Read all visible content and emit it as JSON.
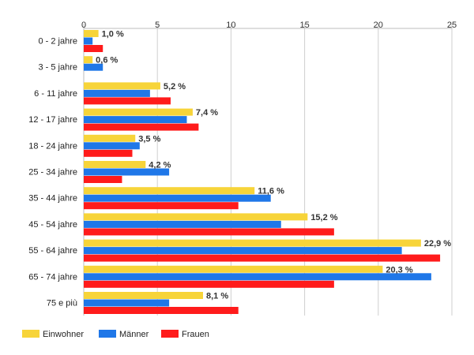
{
  "chart_data": {
    "type": "bar",
    "orientation": "horizontal",
    "categories": [
      "0 - 2 jahre",
      "3 - 5 jahre",
      "6 - 11 jahre",
      "12 - 17 jahre",
      "18 - 24 jahre",
      "25 - 34 jahre",
      "35 - 44 jahre",
      "45 - 54 jahre",
      "55 - 64 jahre",
      "65 - 74 jahre",
      "75 e più"
    ],
    "series": [
      {
        "name": "Einwohner",
        "color": "#f7d439",
        "values": [
          1.0,
          0.6,
          5.2,
          7.4,
          3.5,
          4.2,
          11.6,
          15.2,
          22.9,
          20.3,
          8.1
        ],
        "data_labels": [
          "1,0 %",
          "0,6 %",
          "5,2 %",
          "7,4 %",
          "3,5 %",
          "4,2 %",
          "11,6 %",
          "15,2 %",
          "22,9 %",
          "20,3 %",
          "8,1 %"
        ]
      },
      {
        "name": "Männer",
        "color": "#1f77e8",
        "values": [
          0.6,
          1.3,
          4.5,
          7.0,
          3.8,
          5.8,
          12.7,
          13.4,
          21.6,
          23.6,
          5.8
        ]
      },
      {
        "name": "Frauen",
        "color": "#ff1b1b",
        "values": [
          1.3,
          0.0,
          5.9,
          7.8,
          3.3,
          2.6,
          10.5,
          17.0,
          24.2,
          17.0,
          10.5
        ]
      }
    ],
    "x_ticks": [
      0,
      5,
      10,
      15,
      20,
      25
    ],
    "xlim": [
      0,
      25
    ],
    "grid": true,
    "legend_position": "bottom-left"
  }
}
